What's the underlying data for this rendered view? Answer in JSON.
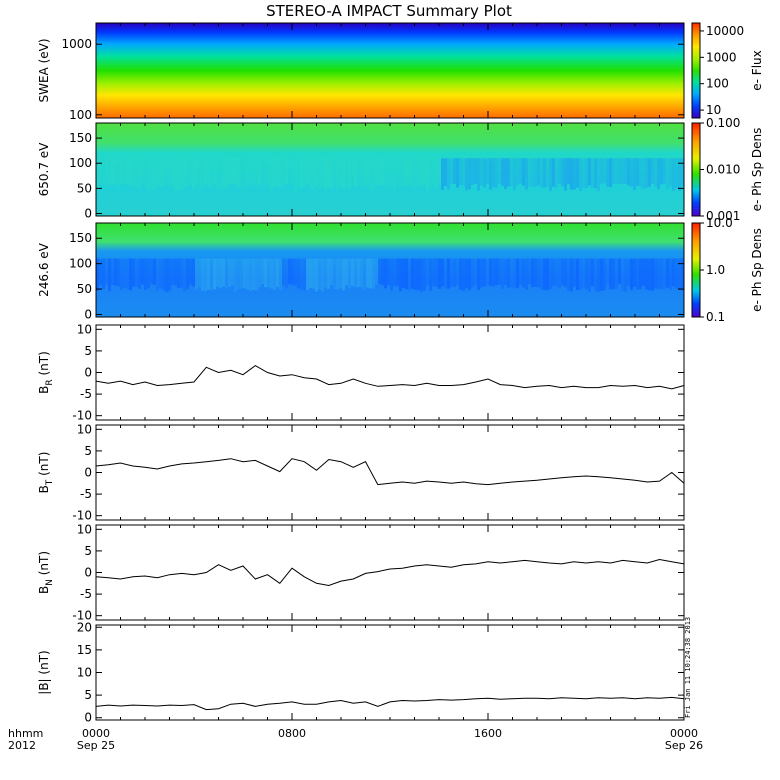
{
  "chart_data": [
    {
      "id": "swea",
      "type": "heatmap",
      "ylabel": "SWEA (eV)",
      "yscale": "log",
      "ylim": [
        90,
        2000
      ],
      "yticks": [
        "1000",
        "100"
      ],
      "ytick_values": [
        1000,
        100
      ],
      "colorbar_label": "e- Flux",
      "colorbar_scale": "log",
      "colorbar_range": [
        5,
        20000
      ],
      "colorbar_ticks": [
        "10000",
        "1000",
        "100",
        "10"
      ],
      "colorbar_tick_values": [
        10000,
        1000,
        100,
        10
      ],
      "colors": [
        "#ff2a00",
        "#ff9a00",
        "#ffe600",
        "#a8f000",
        "#2fe000",
        "#00e0a0",
        "#00a8ff",
        "#0040ff",
        "#3a00c8"
      ]
    },
    {
      "id": "pa650",
      "type": "heatmap",
      "ylabel": "650.7 eV",
      "ylim": [
        -5,
        180
      ],
      "yticks": [
        "150",
        "100",
        "50",
        "0"
      ],
      "ytick_values": [
        150,
        100,
        50,
        0
      ],
      "colorbar_label": "e- Ph Sp Dens",
      "colorbar_scale": "log",
      "colorbar_range": [
        0.001,
        0.1
      ],
      "colorbar_ticks": [
        "0.100",
        "0.010",
        "0.001"
      ],
      "colorbar_tick_values": [
        0.1,
        0.01,
        0.001
      ]
    },
    {
      "id": "pa246",
      "type": "heatmap",
      "ylabel": "246.6 eV",
      "ylim": [
        -5,
        180
      ],
      "yticks": [
        "150",
        "100",
        "50",
        "0"
      ],
      "ytick_values": [
        150,
        100,
        50,
        0
      ],
      "colorbar_label": "e- Ph Sp Dens",
      "colorbar_scale": "log",
      "colorbar_range": [
        0.1,
        10
      ],
      "colorbar_ticks": [
        "10.0",
        "1.0",
        "0.1"
      ],
      "colorbar_tick_values": [
        10,
        1,
        0.1
      ]
    },
    {
      "id": "br",
      "type": "line",
      "ylabel_main": "B",
      "ylabel_sub": "R",
      "ylabel_unit": " (nT)",
      "ylim": [
        -11,
        11
      ],
      "yticks": [
        "10",
        "5",
        "0",
        "-5",
        "-10"
      ],
      "ytick_values": [
        10,
        5,
        0,
        -5,
        -10
      ],
      "x_hours": [
        0,
        0.5,
        1,
        1.5,
        2,
        2.5,
        3,
        3.5,
        4,
        4.5,
        5,
        5.5,
        6,
        6.5,
        7,
        7.5,
        8,
        8.5,
        9,
        9.5,
        10,
        10.5,
        11,
        11.5,
        12,
        12.5,
        13,
        13.5,
        14,
        14.5,
        15,
        15.5,
        16,
        16.5,
        17,
        17.5,
        18,
        18.5,
        19,
        19.5,
        20,
        20.5,
        21,
        21.5,
        22,
        22.5,
        23,
        23.5,
        24
      ],
      "values": [
        -2,
        -2.5,
        -2,
        -2.8,
        -2.2,
        -3,
        -2.8,
        -2.5,
        -2.2,
        1.2,
        0,
        0.5,
        -0.5,
        1.6,
        0,
        -0.8,
        -0.5,
        -1.2,
        -1.5,
        -2.8,
        -2.5,
        -1.5,
        -2.5,
        -3.2,
        -3,
        -2.8,
        -3,
        -2.5,
        -3,
        -3,
        -2.8,
        -2.2,
        -1.5,
        -2.8,
        -3,
        -3.5,
        -3.2,
        -3,
        -3.5,
        -3.2,
        -3.5,
        -3.5,
        -3,
        -3.2,
        -3,
        -3.5,
        -3.2,
        -3.8,
        -3
      ]
    },
    {
      "id": "bt",
      "type": "line",
      "ylabel_main": "B",
      "ylabel_sub": "T",
      "ylabel_unit": " (nT)",
      "ylim": [
        -11,
        11
      ],
      "yticks": [
        "10",
        "5",
        "0",
        "-5",
        "-10"
      ],
      "ytick_values": [
        10,
        5,
        0,
        -5,
        -10
      ],
      "x_hours": [
        0,
        0.5,
        1,
        1.5,
        2,
        2.5,
        3,
        3.5,
        4,
        4.5,
        5,
        5.5,
        6,
        6.5,
        7,
        7.5,
        8,
        8.5,
        9,
        9.5,
        10,
        10.5,
        11,
        11.5,
        12,
        12.5,
        13,
        13.5,
        14,
        14.5,
        15,
        15.5,
        16,
        16.5,
        17,
        17.5,
        18,
        18.5,
        19,
        19.5,
        20,
        20.5,
        21,
        21.5,
        22,
        22.5,
        23,
        23.5,
        24
      ],
      "values": [
        1.5,
        1.8,
        2.2,
        1.5,
        1.2,
        0.8,
        1.5,
        2,
        2.2,
        2.5,
        2.8,
        3.2,
        2.5,
        2.8,
        1.5,
        0.2,
        3.2,
        2.5,
        0.5,
        3,
        2.5,
        1.2,
        2.5,
        -2.8,
        -2.5,
        -2.2,
        -2.5,
        -2,
        -2.2,
        -2.5,
        -2.2,
        -2.6,
        -2.8,
        -2.5,
        -2.2,
        -2,
        -1.8,
        -1.5,
        -1.2,
        -1,
        -0.8,
        -1,
        -1.2,
        -1.5,
        -1.8,
        -2.2,
        -2,
        0,
        -2.5
      ]
    },
    {
      "id": "bn",
      "type": "line",
      "ylabel_main": "B",
      "ylabel_sub": "N",
      "ylabel_unit": " (nT)",
      "ylim": [
        -11,
        11
      ],
      "yticks": [
        "10",
        "5",
        "0",
        "-5",
        "-10"
      ],
      "ytick_values": [
        10,
        5,
        0,
        -5,
        -10
      ],
      "x_hours": [
        0,
        0.5,
        1,
        1.5,
        2,
        2.5,
        3,
        3.5,
        4,
        4.5,
        5,
        5.5,
        6,
        6.5,
        7,
        7.5,
        8,
        8.5,
        9,
        9.5,
        10,
        10.5,
        11,
        11.5,
        12,
        12.5,
        13,
        13.5,
        14,
        14.5,
        15,
        15.5,
        16,
        16.5,
        17,
        17.5,
        18,
        18.5,
        19,
        19.5,
        20,
        20.5,
        21,
        21.5,
        22,
        22.5,
        23,
        23.5,
        24
      ],
      "values": [
        -1,
        -1.2,
        -1.5,
        -1,
        -0.8,
        -1.2,
        -0.5,
        -0.2,
        -0.5,
        0,
        1.8,
        0.5,
        1.5,
        -1.5,
        -0.5,
        -2.5,
        1,
        -1,
        -2.5,
        -3,
        -2,
        -1.5,
        -0.2,
        0.2,
        0.8,
        1,
        1.5,
        1.8,
        1.5,
        1.2,
        1.8,
        2,
        2.5,
        2.2,
        2.5,
        2.8,
        2.5,
        2.2,
        2,
        2.5,
        2.2,
        2.5,
        2.2,
        2.8,
        2.5,
        2.2,
        3,
        2.5,
        2
      ]
    },
    {
      "id": "bmag",
      "type": "line",
      "ylabel_main": "|B| (nT)",
      "ylim": [
        -0.5,
        20.5
      ],
      "yticks": [
        "20",
        "15",
        "10",
        "5",
        "0"
      ],
      "ytick_values": [
        20,
        15,
        10,
        5,
        0
      ],
      "x_hours": [
        0,
        0.5,
        1,
        1.5,
        2,
        2.5,
        3,
        3.5,
        4,
        4.5,
        5,
        5.5,
        6,
        6.5,
        7,
        7.5,
        8,
        8.5,
        9,
        9.5,
        10,
        10.5,
        11,
        11.5,
        12,
        12.5,
        13,
        13.5,
        14,
        14.5,
        15,
        15.5,
        16,
        16.5,
        17,
        17.5,
        18,
        18.5,
        19,
        19.5,
        20,
        20.5,
        21,
        21.5,
        22,
        22.5,
        23,
        23.5,
        24
      ],
      "values": [
        2.5,
        2.8,
        2.6,
        2.8,
        2.7,
        2.6,
        2.8,
        2.7,
        2.9,
        1.8,
        2,
        3,
        3.2,
        2.5,
        3,
        3.2,
        3.5,
        3,
        3,
        3.5,
        3.8,
        3.2,
        3.5,
        2.5,
        3.5,
        3.8,
        3.7,
        3.8,
        4,
        3.9,
        4,
        4.2,
        4.3,
        4.1,
        4.2,
        4.3,
        4.3,
        4.2,
        4.4,
        4.3,
        4.2,
        4.4,
        4.3,
        4.4,
        4.2,
        4.4,
        4.3,
        4.5,
        4.2
      ]
    }
  ],
  "title": "STEREO-A IMPACT Summary Plot",
  "x_axis": {
    "range_hours": [
      0,
      24
    ],
    "ticks": [
      {
        "hour": 0,
        "time": "0000",
        "date": "Sep 25"
      },
      {
        "hour": 8,
        "time": "0800",
        "date": ""
      },
      {
        "hour": 16,
        "time": "1600",
        "date": ""
      },
      {
        "hour": 24,
        "time": "0000",
        "date": "Sep 26"
      }
    ],
    "corner_label_1": "hhmm",
    "corner_label_2": "2012"
  },
  "stamp": "Fri Jan 11 10:24:38 2013"
}
